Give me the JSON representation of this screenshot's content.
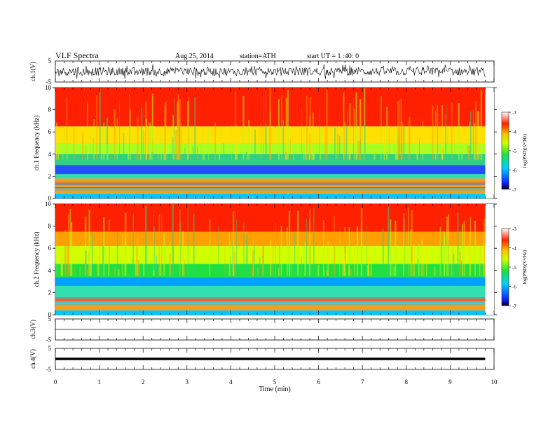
{
  "header": {
    "title": "VLF  Spectra",
    "date": "Aug.25, 2014",
    "station": "station=ATH",
    "start": "start  UT  =   1 :40: 0"
  },
  "chart_data": [
    {
      "type": "line",
      "panel": "ch1-waveform",
      "ylabel": "ch.1(V)",
      "yticks": [
        "5",
        "-5"
      ],
      "ylim": [
        -5,
        5
      ],
      "x_range": [
        0,
        9.8
      ],
      "trace_amplitude": 0.4,
      "spike_amplitude": 3.5,
      "color": "#000000"
    },
    {
      "type": "heatmap",
      "panel": "ch1-spectrogram",
      "ylabel": "ch.1 Frequency  (kHz)",
      "ylim": [
        0,
        10
      ],
      "yticks": [
        "0",
        "2",
        "4",
        "6",
        "8",
        "10"
      ],
      "x_range": [
        0,
        9.8
      ],
      "colorbar": {
        "label": "log(PSD)(V²/Hz)",
        "range": [
          -7,
          -3
        ],
        "ticks": [
          "-3",
          "-4",
          "-5",
          "-6",
          "-7"
        ]
      },
      "bands": [
        {
          "from_khz": 0,
          "to_khz": 0.4,
          "color": "#00c8ff"
        },
        {
          "from_khz": 0.4,
          "to_khz": 1.8,
          "color": "#f0a020"
        },
        {
          "from_khz": 1.8,
          "to_khz": 2.2,
          "color": "#30e0b0"
        },
        {
          "from_khz": 2.2,
          "to_khz": 3.0,
          "color": "#2050ff"
        },
        {
          "from_khz": 3.0,
          "to_khz": 4.0,
          "color": "#30d080"
        },
        {
          "from_khz": 4.0,
          "to_khz": 5.0,
          "color": "#a8ff20"
        },
        {
          "from_khz": 5.0,
          "to_khz": 6.5,
          "color": "#ffe000"
        },
        {
          "from_khz": 6.5,
          "to_khz": 10,
          "color": "#ff2000"
        }
      ]
    },
    {
      "type": "heatmap",
      "panel": "ch2-spectrogram",
      "ylabel": "ch.2 Frequency  (kHz)",
      "ylim": [
        0,
        10
      ],
      "yticks": [
        "0",
        "2",
        "4",
        "6",
        "8",
        "10"
      ],
      "x_range": [
        0,
        9.8
      ],
      "colorbar": {
        "label": "log(PSD)(V²/Hz)",
        "range": [
          -7,
          -3
        ],
        "ticks": [
          "-3",
          "-4",
          "-5",
          "-6",
          "-7"
        ]
      },
      "bands": [
        {
          "from_khz": 0,
          "to_khz": 0.4,
          "color": "#00c8ff"
        },
        {
          "from_khz": 0.4,
          "to_khz": 1.6,
          "color": "#f0a020"
        },
        {
          "from_khz": 1.6,
          "to_khz": 2.6,
          "color": "#30e0b0"
        },
        {
          "from_khz": 2.6,
          "to_khz": 3.4,
          "color": "#00a0ff"
        },
        {
          "from_khz": 3.4,
          "to_khz": 4.6,
          "color": "#20e040"
        },
        {
          "from_khz": 4.6,
          "to_khz": 6.2,
          "color": "#d0ff00"
        },
        {
          "from_khz": 6.2,
          "to_khz": 7.5,
          "color": "#ffa000"
        },
        {
          "from_khz": 7.5,
          "to_khz": 10,
          "color": "#ff2000"
        }
      ]
    },
    {
      "type": "line",
      "panel": "ch3-waveform",
      "ylabel": "ch.3(V)",
      "yticks": [
        "5",
        "-5"
      ],
      "ylim": [
        -5,
        5
      ],
      "x_range": [
        0,
        9.8
      ],
      "level": 0,
      "color": "#000000"
    },
    {
      "type": "line",
      "panel": "ch4-waveform",
      "ylabel": "ch.4(V)",
      "yticks": [
        "5",
        "-5"
      ],
      "ylim": [
        -5,
        5
      ],
      "x_range": [
        0,
        9.8
      ],
      "level": 0,
      "color": "#000000"
    }
  ],
  "xaxis": {
    "label": "Time  (min)",
    "xlim": [
      0,
      10
    ],
    "ticks": [
      "0",
      "1",
      "2",
      "3",
      "4",
      "5",
      "6",
      "7",
      "8",
      "9",
      "10"
    ]
  }
}
